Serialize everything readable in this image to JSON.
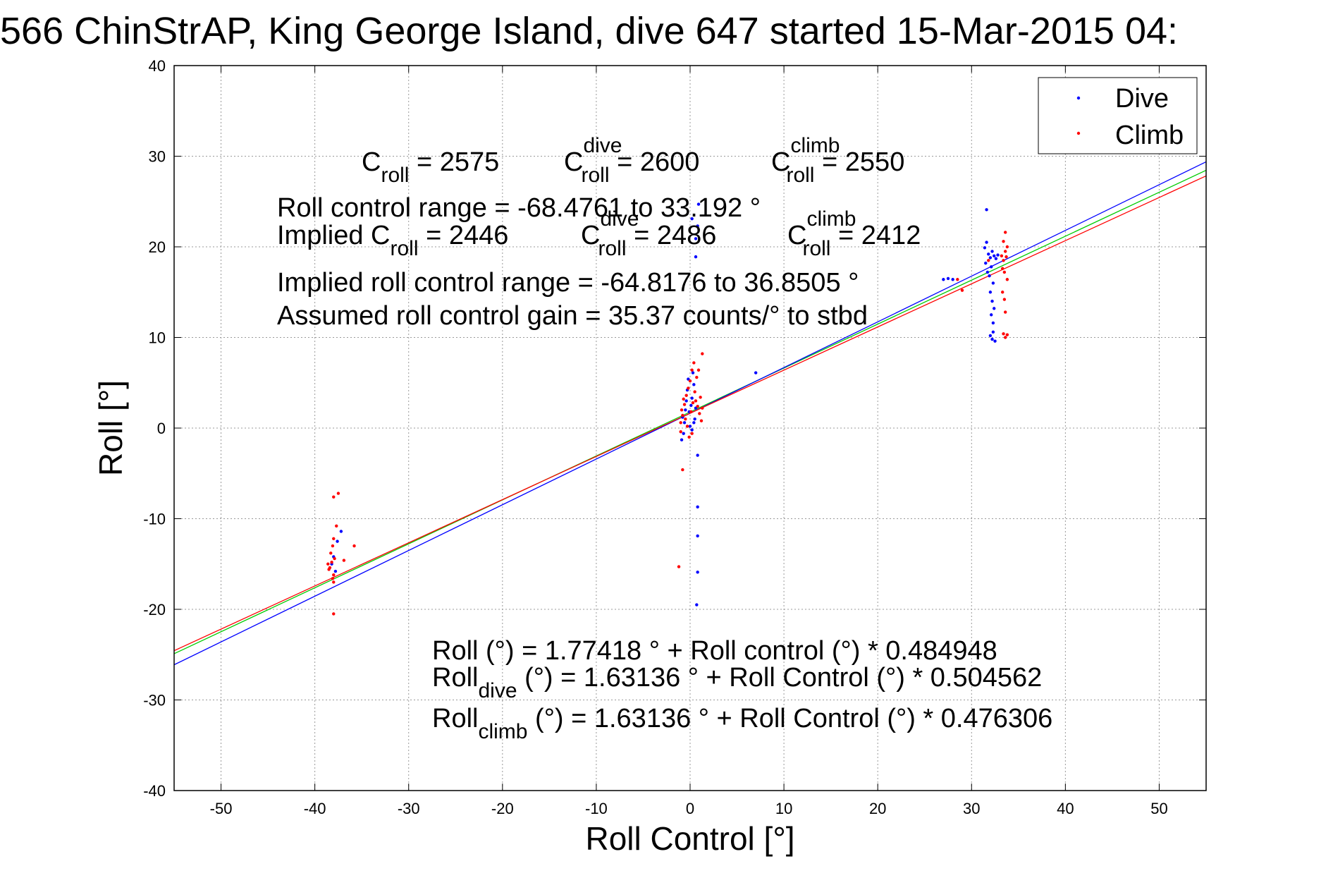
{
  "chart_data": {
    "type": "scatter",
    "title": "566 ChinStrAP, King George Island, dive 647 started 15-Mar-2015 04:",
    "xlabel": "Roll Control [°]",
    "ylabel": "Roll [°]",
    "xlim": [
      -55,
      55
    ],
    "ylim": [
      -40,
      40
    ],
    "xticks": [
      -50,
      -40,
      -30,
      -20,
      -10,
      0,
      10,
      20,
      30,
      40,
      50
    ],
    "yticks": [
      -40,
      -30,
      -20,
      -10,
      0,
      10,
      20,
      30,
      40
    ],
    "grid": true,
    "legend_position": "top-right",
    "series": [
      {
        "name": "Dive",
        "color": "#0000ff",
        "points": [
          [
            -38.2,
            -15.0
          ],
          [
            -38.0,
            -14.2
          ],
          [
            -37.6,
            -12.5
          ],
          [
            -37.2,
            -11.4
          ],
          [
            -37.8,
            -15.8
          ],
          [
            -0.8,
            1.2
          ],
          [
            -0.6,
            0.6
          ],
          [
            -0.5,
            2.0
          ],
          [
            -0.4,
            3.0
          ],
          [
            -0.3,
            4.2
          ],
          [
            -0.2,
            5.4
          ],
          [
            -0.1,
            1.8
          ],
          [
            0.0,
            0.2
          ],
          [
            0.1,
            2.5
          ],
          [
            0.2,
            3.3
          ],
          [
            0.3,
            6.1
          ],
          [
            0.4,
            4.8
          ],
          [
            0.5,
            1.0
          ],
          [
            0.6,
            2.2
          ],
          [
            -0.7,
            -0.6
          ],
          [
            -0.9,
            -1.3
          ],
          [
            0.2,
            -0.2
          ],
          [
            0.4,
            0.6
          ],
          [
            0.8,
            -3.0
          ],
          [
            0.8,
            -8.7
          ],
          [
            0.8,
            -11.9
          ],
          [
            0.8,
            -15.9
          ],
          [
            0.7,
            -19.5
          ],
          [
            0.6,
            18.9
          ],
          [
            0.6,
            20.9
          ],
          [
            0.8,
            22.3
          ],
          [
            0.9,
            24.7
          ],
          [
            0.2,
            23.1
          ],
          [
            7.0,
            6.1
          ],
          [
            27.0,
            16.4
          ],
          [
            27.5,
            16.5
          ],
          [
            28.0,
            16.4
          ],
          [
            31.4,
            19.9
          ],
          [
            31.6,
            20.5
          ],
          [
            31.8,
            19.2
          ],
          [
            32.0,
            18.8
          ],
          [
            32.2,
            19.5
          ],
          [
            32.4,
            19.0
          ],
          [
            32.6,
            18.7
          ],
          [
            32.8,
            19.1
          ],
          [
            31.7,
            17.2
          ],
          [
            31.9,
            16.8
          ],
          [
            32.1,
            17.8
          ],
          [
            32.3,
            16.0
          ],
          [
            32.0,
            15.0
          ],
          [
            32.2,
            14.0
          ],
          [
            32.4,
            13.2
          ],
          [
            32.1,
            12.5
          ],
          [
            32.3,
            11.6
          ],
          [
            32.0,
            10.2
          ],
          [
            32.2,
            9.8
          ],
          [
            32.5,
            9.6
          ],
          [
            32.3,
            10.6
          ],
          [
            31.6,
            24.1
          ],
          [
            31.5,
            18.2
          ]
        ]
      },
      {
        "name": "Climb",
        "color": "#ff0000",
        "points": [
          [
            -38.6,
            -15.0
          ],
          [
            -38.4,
            -15.4
          ],
          [
            -38.2,
            -14.8
          ],
          [
            -38.0,
            -16.2
          ],
          [
            -37.9,
            -14.4
          ],
          [
            -38.3,
            -13.8
          ],
          [
            -38.1,
            -13.0
          ],
          [
            -38.0,
            -12.2
          ],
          [
            -37.7,
            -10.8
          ],
          [
            -38.0,
            -7.6
          ],
          [
            -37.5,
            -7.2
          ],
          [
            -38.0,
            -17.0
          ],
          [
            -38.0,
            -20.5
          ],
          [
            -36.9,
            -14.6
          ],
          [
            -35.8,
            -13.0
          ],
          [
            -38.5,
            -15.6
          ],
          [
            -38.1,
            -16.6
          ],
          [
            -1.0,
            0.6
          ],
          [
            -0.8,
            1.4
          ],
          [
            -0.6,
            2.6
          ],
          [
            -0.4,
            3.6
          ],
          [
            -0.2,
            4.4
          ],
          [
            0.0,
            5.2
          ],
          [
            0.2,
            6.4
          ],
          [
            0.4,
            7.2
          ],
          [
            0.6,
            3.0
          ],
          [
            0.8,
            2.4
          ],
          [
            1.0,
            1.6
          ],
          [
            1.2,
            0.8
          ],
          [
            -0.9,
            2.0
          ],
          [
            -0.7,
            3.2
          ],
          [
            -0.5,
            1.0
          ],
          [
            -0.3,
            0.2
          ],
          [
            0.1,
            1.8
          ],
          [
            0.3,
            2.8
          ],
          [
            0.5,
            4.0
          ],
          [
            0.7,
            5.6
          ],
          [
            0.9,
            6.4
          ],
          [
            1.1,
            3.4
          ],
          [
            1.3,
            8.2
          ],
          [
            1.3,
            2.2
          ],
          [
            -0.8,
            -4.6
          ],
          [
            -1.0,
            -0.4
          ],
          [
            -1.2,
            -15.3
          ],
          [
            0.2,
            -0.6
          ],
          [
            -0.1,
            -1.0
          ],
          [
            28.5,
            16.4
          ],
          [
            29.0,
            15.2
          ],
          [
            31.8,
            18.5
          ],
          [
            33.2,
            19.0
          ],
          [
            33.4,
            18.5
          ],
          [
            33.6,
            19.5
          ],
          [
            33.8,
            20.0
          ],
          [
            33.3,
            17.6
          ],
          [
            33.5,
            17.2
          ],
          [
            33.7,
            18.9
          ],
          [
            33.4,
            20.6
          ],
          [
            33.6,
            21.6
          ],
          [
            33.8,
            16.4
          ],
          [
            33.3,
            15.0
          ],
          [
            33.5,
            14.2
          ],
          [
            33.6,
            12.8
          ],
          [
            33.4,
            10.4
          ],
          [
            33.6,
            10.0
          ],
          [
            33.8,
            10.3
          ]
        ]
      }
    ],
    "fit_lines": [
      {
        "name": "Roll fit",
        "color": "#00cc00",
        "intercept": 1.77418,
        "slope": 0.484948
      },
      {
        "name": "Roll dive fit",
        "color": "#0000ff",
        "intercept": 1.63136,
        "slope": 0.504562
      },
      {
        "name": "Roll climb fit",
        "color": "#ff0000",
        "intercept": 1.63136,
        "slope": 0.476306
      }
    ]
  },
  "annotations": {
    "c_roll_base": "C",
    "c_roll_sub": "roll",
    "c_roll_value": " = 2575",
    "c_dive_base": "C",
    "c_dive_sup": "dive",
    "c_dive_sub": "roll",
    "c_dive_value": " = 2600",
    "c_climb_base": "C",
    "c_climb_sup": "climb",
    "c_climb_sub": "roll",
    "c_climb_value": " = 2550",
    "roll_control_range": "Roll control range = -68.4761 to 33.192 °",
    "implied_base": "Implied C",
    "implied_sub": "roll",
    "implied_value": " = 2446",
    "implied_dive_base": "C",
    "implied_dive_sup": "dive",
    "implied_dive_sub": "roll",
    "implied_dive_value": " = 2486",
    "implied_climb_base": "C",
    "implied_climb_sup": "climb",
    "implied_climb_sub": "roll",
    "implied_climb_value": " = 2412",
    "implied_range": "Implied roll control range = -64.8176 to 36.8505 °",
    "assumed_gain": "Assumed roll control gain = 35.37 counts/° to stbd",
    "eq_roll": "Roll (°) = 1.77418 ° + Roll control (°) * 0.484948",
    "eq_dive_base": "Roll",
    "eq_dive_sub": "dive",
    "eq_dive_rest": " (°) = 1.63136 ° + Roll Control (°) * 0.504562",
    "eq_climb_base": "Roll",
    "eq_climb_sub": "climb",
    "eq_climb_rest": " (°) = 1.63136 ° + Roll Control (°) * 0.476306"
  }
}
